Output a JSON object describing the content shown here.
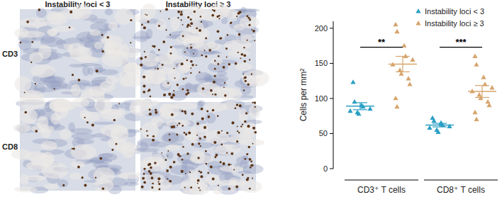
{
  "image_panels": {
    "columns": [
      "Instability loci < 3",
      "Instability loci ≥ 3"
    ],
    "rows": [
      "CD3",
      "CD8"
    ]
  },
  "chart_data": {
    "type": "scatter",
    "y_label": "Cells per mm²",
    "categories": [
      "CD3⁺ T cells",
      "CD8⁺ T cells"
    ],
    "ylim": [
      0,
      210
    ],
    "yticks": [
      0,
      50,
      100,
      150,
      200
    ],
    "legend": "top-right",
    "series": [
      {
        "name": "Instability loci < 3",
        "color": "#2a9fc4",
        "marker": "triangle",
        "values": [
          [
            123,
            95,
            90,
            88,
            85,
            82,
            80,
            78
          ],
          [
            72,
            68,
            65,
            62,
            60,
            58,
            55,
            52
          ]
        ],
        "mean": [
          89,
          62
        ],
        "sem": [
          5,
          2.5
        ]
      },
      {
        "name": "Instability loci ≥ 3",
        "color": "#d6a46c",
        "marker": "triangle",
        "values": [
          [
            205,
            195,
            175,
            160,
            155,
            148,
            140,
            135,
            128,
            120,
            100,
            88
          ],
          [
            160,
            148,
            130,
            120,
            115,
            110,
            105,
            100,
            95,
            90,
            80,
            70
          ]
        ],
        "mean": [
          149,
          110
        ],
        "sem": [
          11,
          8.5
        ]
      }
    ],
    "annotations": [
      {
        "text": "**",
        "category": 0,
        "y": 173
      },
      {
        "text": "***",
        "category": 1,
        "y": 173
      }
    ]
  }
}
